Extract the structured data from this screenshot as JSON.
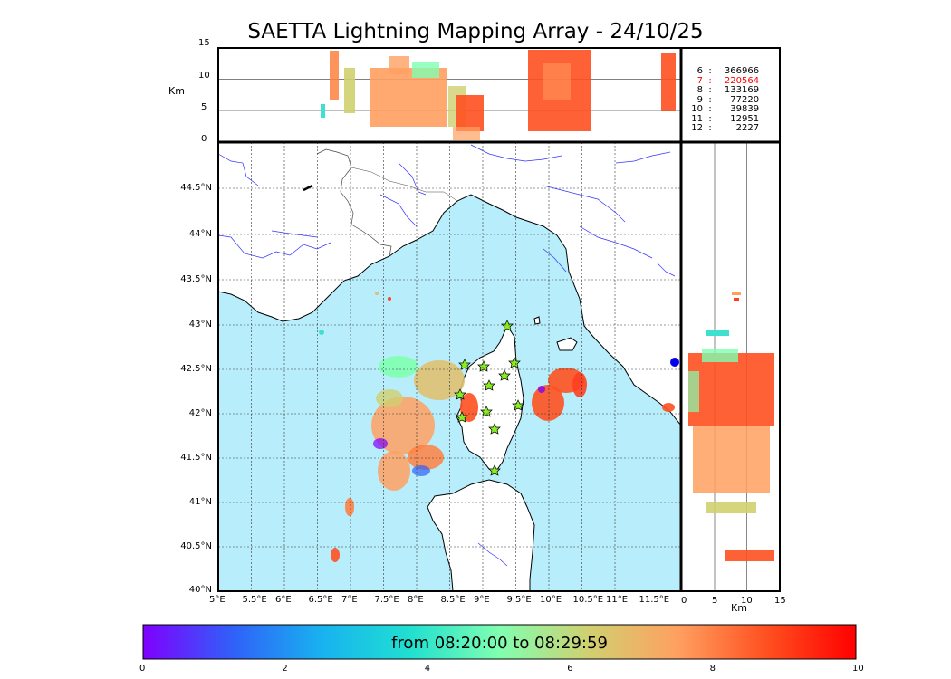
{
  "title": "SAETTA Lightning Mapping Array - 24/10/25",
  "alt_axis": {
    "label": "Km",
    "ticks": [
      "15",
      "10",
      "5",
      "0"
    ]
  },
  "side_axis": {
    "label": "Km",
    "ticks": [
      "0",
      "5",
      "10",
      "15"
    ]
  },
  "map": {
    "lon_labels": [
      "5°E",
      "5.5°E",
      "6°E",
      "6.5°E",
      "7°E",
      "7.5°E",
      "8°E",
      "8.5°E",
      "9°E",
      "9.5°E",
      "10°E",
      "10.5°E",
      "11°E",
      "11.5°E"
    ],
    "lat_labels": [
      "44.5°N",
      "44°N",
      "43.5°N",
      "43°N",
      "42.5°N",
      "42°N",
      "41.5°N",
      "41°N",
      "40.5°N",
      "40°N"
    ],
    "sea_color": "#b8eefb",
    "land_color": "#ffffff",
    "river_color": "#3333ff",
    "station_color": "#88ee22"
  },
  "station_counts": [
    {
      "stations": "6",
      "count": "366966",
      "color": "#000000"
    },
    {
      "stations": "7",
      "count": "220564",
      "color": "#ff0000"
    },
    {
      "stations": "8",
      "count": "133169",
      "color": "#000000"
    },
    {
      "stations": "9",
      "count": "77220",
      "color": "#000000"
    },
    {
      "stations": "10",
      "count": "39839",
      "color": "#000000"
    },
    {
      "stations": "11",
      "count": "12951",
      "color": "#000000"
    },
    {
      "stations": "12",
      "count": "2227",
      "color": "#000000"
    }
  ],
  "colorbar": {
    "label": "from 08:20:00 to 08:29:59",
    "ticks": [
      "0",
      "2",
      "4",
      "6",
      "8",
      "10"
    ],
    "colors": [
      "#7f00ff",
      "#3060f8",
      "#18b2f0",
      "#20e0d0",
      "#80ffb0",
      "#d0d070",
      "#ffa060",
      "#ff5020",
      "#ff0000"
    ]
  }
}
